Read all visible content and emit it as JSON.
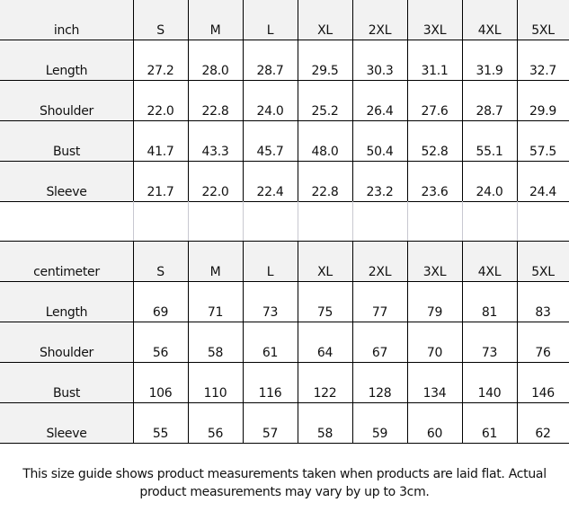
{
  "sizes": [
    "S",
    "M",
    "L",
    "XL",
    "2XL",
    "3XL",
    "4XL",
    "5XL"
  ],
  "inch_table": {
    "unit_label": "inch",
    "rows": [
      {
        "label": "Length",
        "values": [
          "27.2",
          "28.0",
          "28.7",
          "29.5",
          "30.3",
          "31.1",
          "31.9",
          "32.7"
        ]
      },
      {
        "label": "Shoulder",
        "values": [
          "22.0",
          "22.8",
          "24.0",
          "25.2",
          "26.4",
          "27.6",
          "28.7",
          "29.9"
        ]
      },
      {
        "label": "Bust",
        "values": [
          "41.7",
          "43.3",
          "45.7",
          "48.0",
          "50.4",
          "52.8",
          "55.1",
          "57.5"
        ]
      },
      {
        "label": "Sleeve",
        "values": [
          "21.7",
          "22.0",
          "22.4",
          "22.8",
          "23.2",
          "23.6",
          "24.0",
          "24.4"
        ]
      }
    ]
  },
  "cm_table": {
    "unit_label": "centimeter",
    "rows": [
      {
        "label": "Length",
        "values": [
          "69",
          "71",
          "73",
          "75",
          "77",
          "79",
          "81",
          "83"
        ]
      },
      {
        "label": "Shoulder",
        "values": [
          "56",
          "58",
          "61",
          "64",
          "67",
          "70",
          "73",
          "76"
        ]
      },
      {
        "label": "Bust",
        "values": [
          "106",
          "110",
          "116",
          "122",
          "128",
          "134",
          "140",
          "146"
        ]
      },
      {
        "label": "Sleeve",
        "values": [
          "55",
          "56",
          "57",
          "58",
          "59",
          "60",
          "61",
          "62"
        ]
      }
    ]
  },
  "note": {
    "line1": "This size guide shows product measurements taken when products are laid flat. Actual",
    "line2": "product measurements may vary by up to 3cm."
  },
  "colors": {
    "header_bg": "#f2f2f2",
    "grid": "#000000"
  }
}
